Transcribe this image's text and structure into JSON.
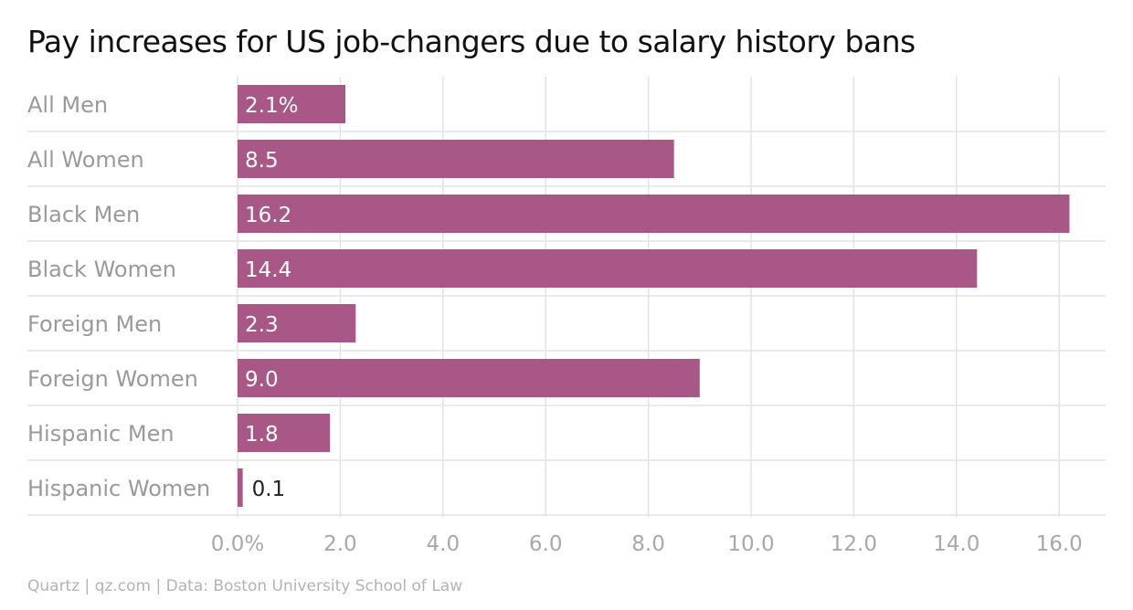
{
  "title": "Pay increases for US job-changers due to salary history bans",
  "source": "Quartz | qz.com | Data: Boston University School of Law",
  "colors": {
    "bar": "#a85786",
    "grid": "#e3e3e3",
    "label_inside": "#ffffff",
    "label_outside": "#222222"
  },
  "chart_data": {
    "type": "bar",
    "orientation": "horizontal",
    "title": "Pay increases for US job-changers due to salary history bans",
    "categories": [
      "All Men",
      "All Women",
      "Black Men",
      "Black Women",
      "Foreign Men",
      "Foreign Women",
      "Hispanic Men",
      "Hispanic Women"
    ],
    "values": [
      2.1,
      8.5,
      16.2,
      14.4,
      2.3,
      9.0,
      1.8,
      0.1
    ],
    "value_labels": [
      "2.1%",
      "8.5",
      "16.2",
      "14.4",
      "2.3",
      "9.0",
      "1.8",
      "0.1"
    ],
    "x_ticks": [
      0,
      2,
      4,
      6,
      8,
      10,
      12,
      14,
      16
    ],
    "x_tick_labels": [
      "0.0%",
      "2.0",
      "4.0",
      "6.0",
      "8.0",
      "10.0",
      "12.0",
      "14.0",
      "16.0"
    ],
    "xlim": [
      0,
      16.9
    ],
    "xlabel": "",
    "ylabel": "",
    "grid": true,
    "legend": "none"
  }
}
